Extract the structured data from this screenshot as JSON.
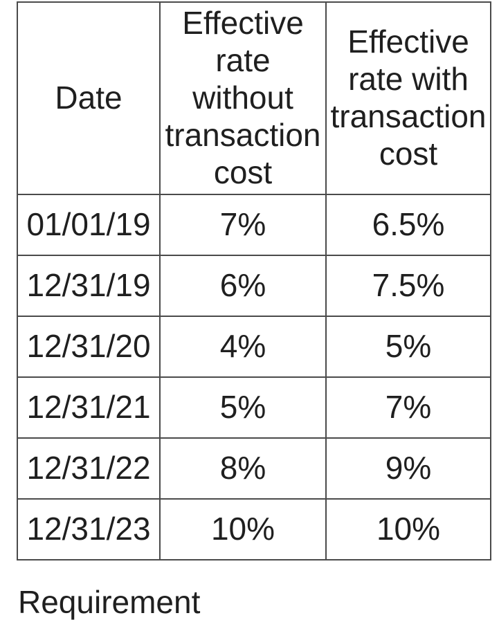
{
  "table": {
    "name": "effective-rates-table",
    "columns": {
      "date": "Date",
      "without": "Effective\nrate\nwithout\ntransaction\ncost",
      "with": "Effective\nrate with\ntransaction\ncost"
    },
    "rows": [
      {
        "date": "01/01/19",
        "without": "7%",
        "with": "6.5%"
      },
      {
        "date": "12/31/19",
        "without": "6%",
        "with": "7.5%"
      },
      {
        "date": "12/31/20",
        "without": "4%",
        "with": "5%"
      },
      {
        "date": "12/31/21",
        "without": "5%",
        "with": "7%"
      },
      {
        "date": "12/31/22",
        "without": "8%",
        "with": "9%"
      },
      {
        "date": "12/31/23",
        "without": "10%",
        "with": "10%"
      }
    ]
  },
  "footer": {
    "partial_text": "Requirement"
  },
  "colors": {
    "border": "#4a4a4a",
    "text": "#1f1f1f",
    "background": "#ffffff"
  }
}
